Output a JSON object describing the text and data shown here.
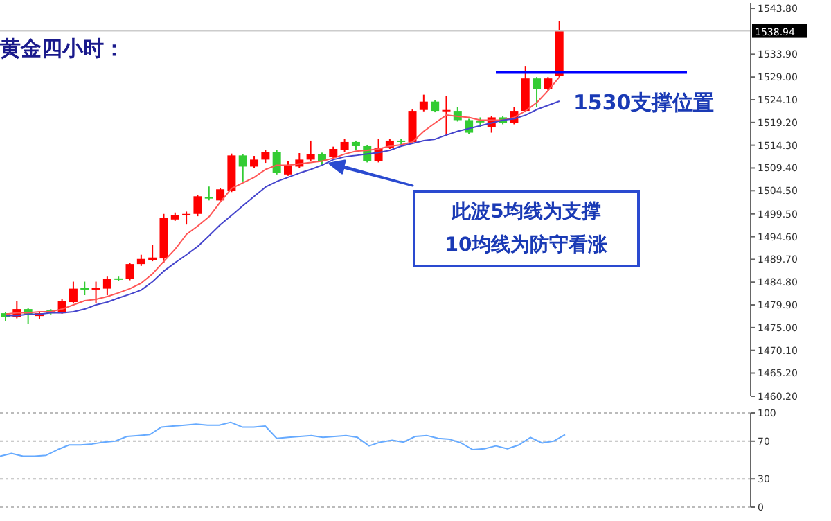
{
  "chart_data": [
    {
      "type": "candlestick",
      "title": "黄金四小时：",
      "categories": [
        null,
        null,
        null,
        null,
        null,
        null,
        null,
        null,
        null,
        null,
        null,
        null,
        null,
        null,
        null,
        null,
        null,
        null,
        null,
        null,
        null,
        null,
        null,
        null,
        null,
        null,
        null,
        null,
        null,
        null,
        null,
        null,
        null,
        null,
        null,
        null,
        null,
        null,
        null,
        null,
        null,
        null,
        null,
        null,
        null,
        null,
        null,
        null,
        null,
        null
      ],
      "ohlc": [
        [
          1478.1,
          1478.4,
          1476.4,
          1477.3
        ],
        [
          1477.3,
          1480.8,
          1477.0,
          1479.0
        ],
        [
          1479.0,
          1479.2,
          1475.8,
          1477.9
        ],
        [
          1477.5,
          1478.4,
          1476.8,
          1478.1
        ],
        [
          1478.7,
          1479.0,
          1477.8,
          1478.1
        ],
        [
          1478.1,
          1481.1,
          1478.0,
          1480.8
        ],
        [
          1480.5,
          1484.9,
          1480.2,
          1483.4
        ],
        [
          1483.5,
          1484.9,
          1482.0,
          1483.2
        ],
        [
          1483.2,
          1484.9,
          1480.2,
          1483.6
        ],
        [
          1483.4,
          1486.0,
          1482.0,
          1485.5
        ],
        [
          1485.6,
          1486.0,
          1485.0,
          1485.4
        ],
        [
          1485.5,
          1489.0,
          1485.2,
          1488.7
        ],
        [
          1488.7,
          1490.7,
          1488.3,
          1489.8
        ],
        [
          1489.6,
          1492.8,
          1489.3,
          1490.1
        ],
        [
          1489.9,
          1499.5,
          1489.0,
          1498.6
        ],
        [
          1498.3,
          1499.8,
          1498.0,
          1499.2
        ],
        [
          1499.2,
          1500.0,
          1497.2,
          1499.5
        ],
        [
          1499.5,
          1503.6,
          1499.0,
          1503.3
        ],
        [
          1503.1,
          1505.4,
          1502.4,
          1502.9
        ],
        [
          1502.4,
          1505.1,
          1502.1,
          1504.8
        ],
        [
          1504.5,
          1512.5,
          1504.2,
          1512.1
        ],
        [
          1512.1,
          1512.4,
          1506.5,
          1509.7
        ],
        [
          1509.7,
          1512.0,
          1509.4,
          1511.2
        ],
        [
          1511.2,
          1513.2,
          1510.5,
          1512.9
        ],
        [
          1512.9,
          1513.2,
          1508.0,
          1508.3
        ],
        [
          1508.0,
          1510.9,
          1507.7,
          1510.0
        ],
        [
          1509.7,
          1512.6,
          1509.4,
          1511.2
        ],
        [
          1511.2,
          1515.3,
          1510.9,
          1512.4
        ],
        [
          1512.4,
          1512.7,
          1510.0,
          1510.9
        ],
        [
          1511.8,
          1514.0,
          1511.5,
          1513.5
        ],
        [
          1513.2,
          1515.6,
          1512.9,
          1515.0
        ],
        [
          1515.0,
          1515.3,
          1513.2,
          1514.1
        ],
        [
          1514.1,
          1514.4,
          1510.6,
          1510.9
        ],
        [
          1510.9,
          1515.6,
          1510.6,
          1513.8
        ],
        [
          1513.8,
          1515.6,
          1513.5,
          1515.3
        ],
        [
          1515.3,
          1515.6,
          1514.4,
          1515.0
        ],
        [
          1515.0,
          1522.0,
          1514.7,
          1521.7
        ],
        [
          1521.9,
          1525.2,
          1521.6,
          1523.7
        ],
        [
          1523.7,
          1524.0,
          1521.4,
          1521.7
        ],
        [
          1521.8,
          1524.9,
          1516.2,
          1521.9
        ],
        [
          1521.7,
          1522.6,
          1519.4,
          1519.7
        ],
        [
          1519.7,
          1520.0,
          1516.7,
          1517.0
        ],
        [
          1519.5,
          1520.3,
          1518.2,
          1519.3
        ],
        [
          1518.2,
          1520.6,
          1517.0,
          1520.3
        ],
        [
          1520.3,
          1520.6,
          1518.8,
          1519.1
        ],
        [
          1519.1,
          1522.6,
          1518.8,
          1521.7
        ],
        [
          1521.7,
          1531.4,
          1521.4,
          1528.7
        ],
        [
          1528.7,
          1529.0,
          1522.6,
          1526.4
        ],
        [
          1526.4,
          1529.0,
          1526.1,
          1528.7
        ],
        [
          1529.3,
          1541.0,
          1529.0,
          1538.94
        ]
      ],
      "colors": [
        "#33cc33",
        "#ff0000",
        "#33cc33",
        "#ff0000",
        "#33cc33",
        "#ff0000",
        "#ff0000",
        "#33cc33",
        "#ff0000",
        "#ff0000",
        "#33cc33",
        "#ff0000",
        "#ff0000",
        "#ff0000",
        "#ff0000",
        "#ff0000",
        "#ff0000",
        "#ff0000",
        "#33cc33",
        "#ff0000",
        "#ff0000",
        "#33cc33",
        "#ff0000",
        "#ff0000",
        "#33cc33",
        "#ff0000",
        "#ff0000",
        "#ff0000",
        "#33cc33",
        "#ff0000",
        "#ff0000",
        "#33cc33",
        "#33cc33",
        "#ff0000",
        "#ff0000",
        "#33cc33",
        "#ff0000",
        "#ff0000",
        "#33cc33",
        "#ff0000",
        "#33cc33",
        "#33cc33",
        "#33cc33",
        "#ff0000",
        "#33cc33",
        "#ff0000",
        "#ff0000",
        "#33cc33",
        "#ff0000",
        "#ff0000"
      ],
      "series": [
        {
          "type": "line",
          "color": "#ff5555",
          "values": [
            1477.9,
            1478.2,
            1478.2,
            1478.4,
            1478.4,
            1479.0,
            1479.9,
            1480.8,
            1481.1,
            1481.7,
            1482.5,
            1483.4,
            1484.6,
            1486.6,
            1489.3,
            1491.9,
            1495.1,
            1496.9,
            1498.9,
            1502.1,
            1505.0,
            1506.2,
            1507.4,
            1509.1,
            1510.0,
            1510.0,
            1510.3,
            1510.6,
            1510.9,
            1511.5,
            1512.4,
            1513.0,
            1513.2,
            1513.5,
            1514.1,
            1514.4,
            1515.0,
            1517.3,
            1519.1,
            1520.8,
            1520.5,
            1520.3,
            1519.7,
            1519.7,
            1519.7,
            1520.3,
            1521.7,
            1523.5,
            1526.1,
            1529.0
          ]
        },
        {
          "type": "line",
          "color": "#4444cc",
          "values": [
            1477.6,
            1477.6,
            1477.9,
            1477.9,
            1478.2,
            1478.2,
            1478.4,
            1479.0,
            1479.9,
            1480.5,
            1481.4,
            1482.2,
            1483.1,
            1484.9,
            1487.2,
            1489.0,
            1490.7,
            1492.5,
            1494.8,
            1497.2,
            1499.2,
            1501.3,
            1503.3,
            1505.3,
            1506.5,
            1507.4,
            1508.3,
            1509.1,
            1510.0,
            1511.2,
            1511.8,
            1512.1,
            1512.4,
            1512.7,
            1513.2,
            1514.1,
            1514.7,
            1515.3,
            1515.6,
            1516.5,
            1517.3,
            1517.9,
            1518.5,
            1519.1,
            1519.7,
            1520.0,
            1520.8,
            1522.0,
            1522.9,
            1523.8
          ]
        }
      ],
      "ylim": [
        1460.2,
        1545.0
      ],
      "yticks": [
        {
          "value": 1543.8,
          "label": "1543.80"
        },
        {
          "value": 1533.9,
          "label": "1533.90"
        },
        {
          "value": 1529.0,
          "label": "1529.00"
        },
        {
          "value": 1524.1,
          "label": "1524.10"
        },
        {
          "value": 1519.2,
          "label": "1519.20"
        },
        {
          "value": 1514.3,
          "label": "1514.30"
        },
        {
          "value": 1509.4,
          "label": "1509.40"
        },
        {
          "value": 1504.5,
          "label": "1504.50"
        },
        {
          "value": 1499.5,
          "label": "1499.50"
        },
        {
          "value": 1494.6,
          "label": "1494.60"
        },
        {
          "value": 1489.7,
          "label": "1489.70"
        },
        {
          "value": 1484.8,
          "label": "1484.80"
        },
        {
          "value": 1479.9,
          "label": "1479.90"
        },
        {
          "value": 1475.0,
          "label": "1475.00"
        },
        {
          "value": 1470.1,
          "label": "1470.10"
        },
        {
          "value": 1465.2,
          "label": "1465.20"
        },
        {
          "value": 1460.2,
          "label": "1460.20"
        }
      ],
      "ref_lines": [
        {
          "axis": "y",
          "value": 1538.94,
          "label": "1538.94",
          "color": "#cccccc"
        },
        {
          "axis": "y",
          "value": 1530,
          "label": "1530支撑位置",
          "color": "#0000ff"
        }
      ],
      "annotations": [
        "此波5均线为支撑",
        "10均线为防守看涨"
      ],
      "marker": "none",
      "tick_labels": "y"
    },
    {
      "type": "line",
      "categories": [
        null,
        null,
        null,
        null,
        null,
        null,
        null,
        null,
        null,
        null,
        null,
        null,
        null,
        null,
        null,
        null,
        null,
        null,
        null,
        null,
        null,
        null,
        null,
        null,
        null,
        null,
        null,
        null,
        null,
        null,
        null,
        null,
        null,
        null,
        null,
        null,
        null,
        null,
        null,
        null,
        null,
        null,
        null,
        null,
        null,
        null,
        null,
        null,
        null,
        null
      ],
      "series": [
        {
          "color": "#66aaff",
          "values": [
            54,
            57,
            54,
            54,
            55,
            61,
            66,
            66,
            67,
            69,
            70,
            75,
            76,
            77,
            85,
            86,
            87,
            88,
            87,
            87,
            90,
            85,
            85,
            86,
            73,
            74,
            75,
            76,
            74,
            75,
            76,
            74,
            65,
            69,
            71,
            69,
            75,
            76,
            73,
            72,
            68,
            61,
            62,
            65,
            62,
            66,
            74,
            68,
            70,
            77
          ]
        }
      ],
      "ylim": [
        0,
        100
      ],
      "yticks": [
        100,
        70,
        30,
        0
      ],
      "grid": "y",
      "marker": "none",
      "tick_labels": "y"
    }
  ]
}
